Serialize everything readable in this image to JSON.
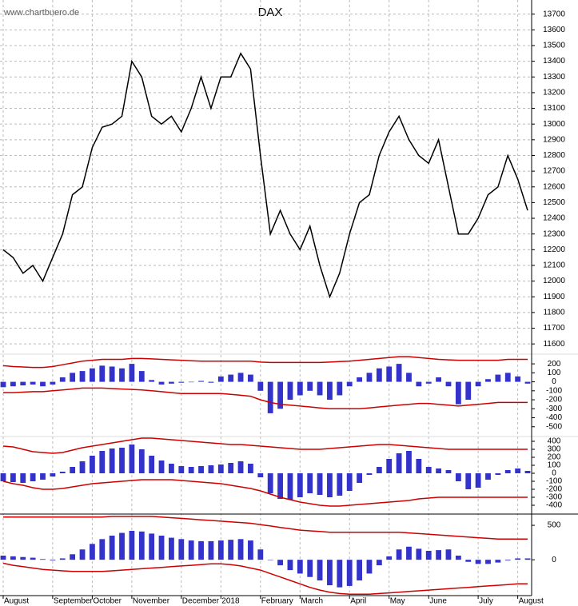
{
  "source": "www.chartbuero.de",
  "chart_data": [
    {
      "type": "line",
      "title": "DAX",
      "categories": [
        "August",
        null,
        null,
        null,
        null,
        "September",
        null,
        null,
        null,
        "October",
        null,
        null,
        null,
        "November",
        null,
        null,
        null,
        null,
        "December",
        null,
        null,
        null,
        "2018",
        null,
        null,
        null,
        "February",
        null,
        null,
        null,
        "March",
        null,
        null,
        null,
        null,
        "April",
        null,
        null,
        null,
        "May",
        null,
        null,
        null,
        "June",
        null,
        null,
        null,
        null,
        "July",
        null,
        null,
        null,
        "August",
        null
      ],
      "ylim": [
        11550,
        13790
      ],
      "yticks": [
        11600,
        11700,
        11800,
        11900,
        12000,
        12100,
        12200,
        12300,
        12400,
        12500,
        12600,
        12700,
        12800,
        12900,
        13000,
        13100,
        13200,
        13300,
        13400,
        13500,
        13600,
        13700
      ],
      "grid": true,
      "series": [
        {
          "type": "line",
          "color": "#000000",
          "values": [
            12200,
            12150,
            12050,
            12100,
            12000,
            12150,
            12300,
            12550,
            12600,
            12850,
            12980,
            13000,
            13050,
            13400,
            13300,
            13050,
            13000,
            13050,
            12950,
            13100,
            13300,
            13100,
            13300,
            13300,
            13450,
            13350,
            12800,
            12300,
            12450,
            12300,
            12200,
            12350,
            12100,
            11900,
            12050,
            12300,
            12500,
            12550,
            12800,
            12950,
            13050,
            12900,
            12800,
            12750,
            12900,
            12600,
            12300,
            12300,
            12400,
            12550,
            12600,
            12800,
            12650,
            12450
          ]
        }
      ]
    },
    {
      "type": "bar",
      "ylim": [
        -600,
        290
      ],
      "yticks": [
        200,
        100,
        0,
        -100,
        -200,
        -300,
        -400,
        -500
      ],
      "series": [
        {
          "type": "bar",
          "color": "#3333cc",
          "values": [
            -60,
            -50,
            -40,
            -30,
            -50,
            -30,
            50,
            100,
            120,
            150,
            180,
            170,
            150,
            200,
            120,
            20,
            -30,
            -20,
            -10,
            -5,
            10,
            -10,
            60,
            80,
            100,
            80,
            -100,
            -350,
            -300,
            -200,
            -150,
            -100,
            -150,
            -200,
            -150,
            -50,
            50,
            100,
            150,
            170,
            200,
            100,
            -50,
            -20,
            50,
            -50,
            -250,
            -200,
            -50,
            30,
            80,
            100,
            60,
            -20
          ]
        },
        {
          "type": "line",
          "color": "#cc0000",
          "values": [
            180,
            170,
            165,
            160,
            160,
            170,
            190,
            210,
            230,
            240,
            250,
            250,
            250,
            260,
            260,
            255,
            250,
            245,
            240,
            235,
            230,
            230,
            230,
            230,
            230,
            230,
            220,
            215,
            215,
            215,
            215,
            215,
            215,
            220,
            225,
            230,
            240,
            250,
            260,
            270,
            280,
            280,
            270,
            260,
            250,
            245,
            240,
            240,
            240,
            240,
            240,
            250,
            250,
            250
          ]
        },
        {
          "type": "line",
          "color": "#cc0000",
          "values": [
            -120,
            -120,
            -115,
            -110,
            -110,
            -100,
            -90,
            -80,
            -70,
            -70,
            -70,
            -75,
            -80,
            -85,
            -90,
            -100,
            -110,
            -120,
            -130,
            -130,
            -130,
            -130,
            -130,
            -140,
            -150,
            -160,
            -200,
            -230,
            -250,
            -260,
            -270,
            -280,
            -290,
            -300,
            -300,
            -300,
            -300,
            -290,
            -280,
            -270,
            -260,
            -250,
            -240,
            -240,
            -250,
            -260,
            -270,
            -260,
            -250,
            -240,
            -230,
            -230,
            -230,
            -230
          ]
        }
      ]
    },
    {
      "type": "bar",
      "ylim": [
        -480,
        440
      ],
      "yticks": [
        400,
        300,
        200,
        100,
        0,
        -100,
        -200,
        -300,
        -400
      ],
      "series": [
        {
          "type": "bar",
          "color": "#3333cc",
          "values": [
            -100,
            -110,
            -120,
            -100,
            -80,
            -40,
            20,
            80,
            150,
            220,
            280,
            310,
            320,
            360,
            300,
            220,
            160,
            120,
            90,
            80,
            90,
            100,
            110,
            130,
            150,
            120,
            -50,
            -250,
            -320,
            -330,
            -300,
            -250,
            -270,
            -300,
            -280,
            -220,
            -120,
            -20,
            80,
            180,
            250,
            280,
            180,
            80,
            60,
            40,
            -100,
            -200,
            -180,
            -80,
            -20,
            40,
            60,
            30
          ]
        },
        {
          "type": "line",
          "color": "#cc0000",
          "values": [
            340,
            330,
            300,
            270,
            260,
            250,
            260,
            290,
            320,
            340,
            360,
            380,
            400,
            420,
            440,
            440,
            430,
            420,
            410,
            400,
            390,
            380,
            370,
            360,
            360,
            350,
            340,
            330,
            320,
            310,
            300,
            300,
            300,
            310,
            320,
            330,
            340,
            350,
            360,
            360,
            350,
            340,
            330,
            320,
            310,
            300,
            300,
            300,
            300,
            300,
            300,
            300,
            300,
            300
          ]
        },
        {
          "type": "line",
          "color": "#cc0000",
          "values": [
            -100,
            -130,
            -150,
            -180,
            -200,
            -200,
            -190,
            -170,
            -150,
            -130,
            -120,
            -110,
            -100,
            -90,
            -80,
            -80,
            -80,
            -80,
            -90,
            -100,
            -110,
            -120,
            -130,
            -150,
            -170,
            -190,
            -220,
            -260,
            -300,
            -330,
            -360,
            -380,
            -400,
            -410,
            -410,
            -400,
            -390,
            -380,
            -370,
            -360,
            -350,
            -340,
            -320,
            -310,
            -300,
            -300,
            -300,
            -300,
            -300,
            -300,
            -300,
            -300,
            -300,
            -300
          ]
        }
      ]
    },
    {
      "type": "bar",
      "ylim": [
        -520,
        640
      ],
      "yticks": [
        500,
        0
      ],
      "series": [
        {
          "type": "bar",
          "color": "#3333cc",
          "values": [
            60,
            50,
            40,
            30,
            10,
            -10,
            20,
            80,
            150,
            230,
            300,
            350,
            390,
            420,
            410,
            380,
            350,
            320,
            300,
            280,
            270,
            270,
            280,
            290,
            300,
            280,
            150,
            0,
            -80,
            -150,
            -200,
            -250,
            -300,
            -370,
            -400,
            -380,
            -300,
            -200,
            -80,
            50,
            150,
            190,
            160,
            130,
            140,
            150,
            60,
            -30,
            -60,
            -60,
            -40,
            -10,
            20,
            20
          ]
        },
        {
          "type": "line",
          "color": "#cc0000",
          "values": [
            620,
            620,
            620,
            620,
            620,
            620,
            620,
            620,
            620,
            620,
            620,
            630,
            630,
            630,
            630,
            630,
            620,
            610,
            600,
            590,
            580,
            570,
            560,
            550,
            540,
            530,
            510,
            490,
            470,
            450,
            430,
            420,
            410,
            400,
            400,
            400,
            400,
            400,
            400,
            400,
            400,
            390,
            380,
            370,
            360,
            350,
            340,
            330,
            320,
            310,
            300,
            300,
            300,
            300
          ]
        },
        {
          "type": "line",
          "color": "#cc0000",
          "values": [
            -50,
            -80,
            -100,
            -120,
            -140,
            -150,
            -160,
            -170,
            -170,
            -170,
            -170,
            -160,
            -150,
            -140,
            -130,
            -120,
            -110,
            -100,
            -90,
            -80,
            -70,
            -60,
            -60,
            -70,
            -90,
            -120,
            -150,
            -200,
            -250,
            -300,
            -350,
            -400,
            -440,
            -470,
            -490,
            -500,
            -500,
            -500,
            -490,
            -480,
            -470,
            -460,
            -450,
            -440,
            -430,
            -420,
            -410,
            -400,
            -390,
            -380,
            -370,
            -360,
            -350,
            -350
          ]
        }
      ]
    }
  ]
}
